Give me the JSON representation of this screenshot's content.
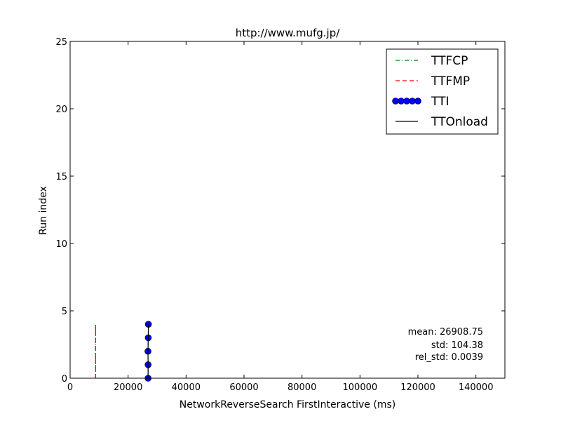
{
  "chart_data": {
    "type": "line",
    "title": "http://www.mufg.jp/",
    "xlabel": "NetworkReverseSearch FirstInteractive (ms)",
    "ylabel": "Run index",
    "xlim": [
      0,
      150000
    ],
    "ylim": [
      0,
      25
    ],
    "xticks": [
      0,
      20000,
      40000,
      60000,
      80000,
      100000,
      120000,
      140000
    ],
    "xtick_labels": [
      "0",
      "20000",
      "40000",
      "60000",
      "80000",
      "100000",
      "120000",
      "140000"
    ],
    "yticks": [
      0,
      5,
      10,
      15,
      20,
      25
    ],
    "ytick_labels": [
      "0",
      "5",
      "10",
      "15",
      "20",
      "25"
    ],
    "grid": false,
    "legend_position": "top-right",
    "series": [
      {
        "name": "TTFCP",
        "color": "#008000",
        "style": "dash-dot",
        "points": [
          [
            8800,
            0
          ],
          [
            8800,
            1
          ],
          [
            8800,
            2
          ],
          [
            8800,
            3
          ],
          [
            8800,
            4
          ]
        ]
      },
      {
        "name": "TTFMP",
        "color": "#ff0000",
        "style": "dashed",
        "points": [
          [
            8800,
            0
          ],
          [
            8800,
            1
          ],
          [
            8800,
            2
          ],
          [
            8800,
            3
          ],
          [
            8800,
            4
          ]
        ]
      },
      {
        "name": "TTI",
        "color": "#0000ff",
        "style": "markers",
        "points": [
          [
            26900,
            0
          ],
          [
            26900,
            1
          ],
          [
            26850,
            2
          ],
          [
            26950,
            3
          ],
          [
            27000,
            4
          ]
        ]
      },
      {
        "name": "TTOnload",
        "color": "#000000",
        "style": "solid",
        "points": [
          [
            26900,
            0
          ],
          [
            26900,
            1
          ],
          [
            26850,
            2
          ],
          [
            26950,
            3
          ],
          [
            27000,
            4
          ]
        ]
      }
    ],
    "stats": {
      "mean": "mean: 26908.75",
      "std": "std: 104.38",
      "rel_std": "rel_std: 0.0039"
    }
  }
}
